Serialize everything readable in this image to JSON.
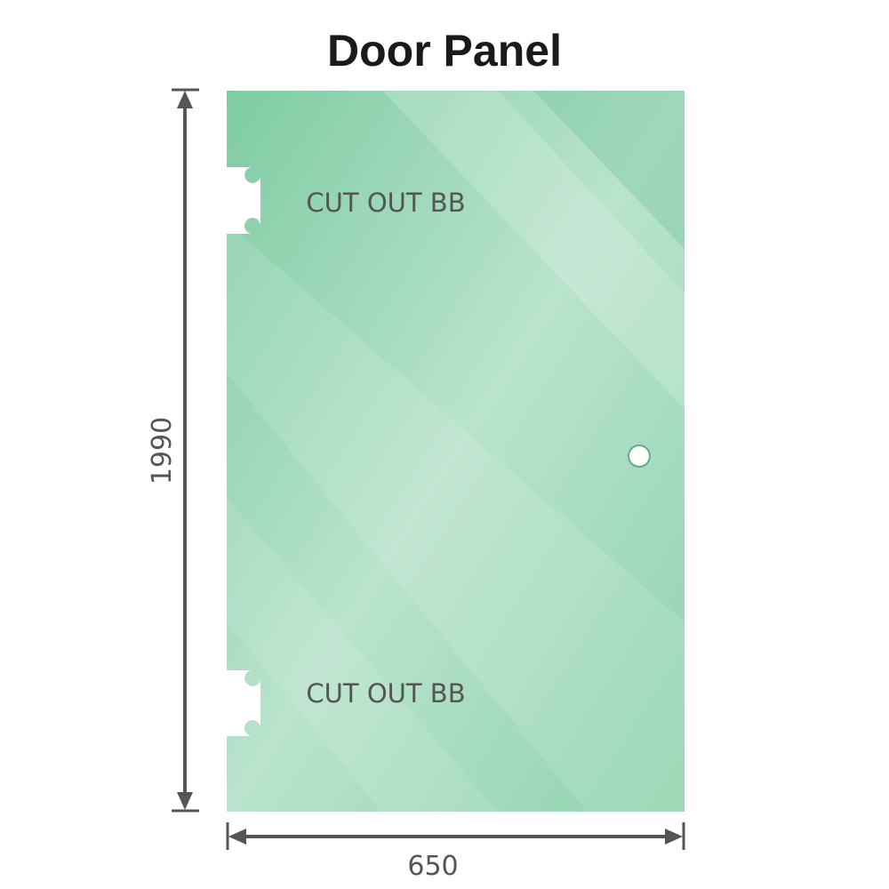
{
  "title": "Door Panel",
  "panel": {
    "color": "#86cfa6",
    "cutout_labels": [
      "CUT OUT BB",
      "CUT OUT BB"
    ]
  },
  "dimensions": {
    "height": "1990",
    "width": "650",
    "line_color": "#555555"
  }
}
